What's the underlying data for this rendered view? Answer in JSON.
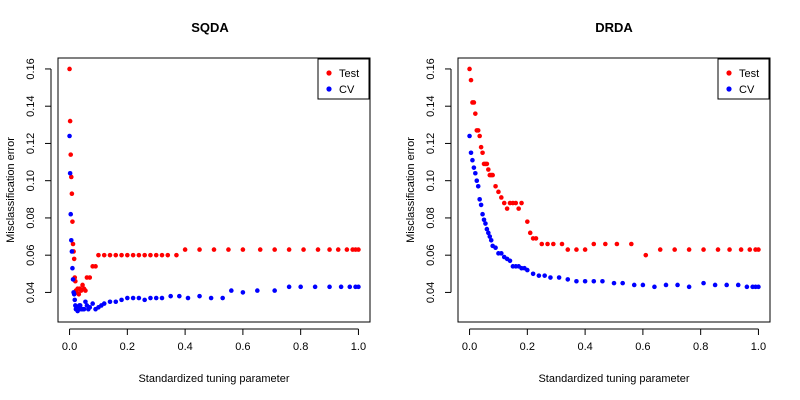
{
  "chart_data": [
    {
      "type": "scatter",
      "title": "SQDA",
      "xlabel": "Standardized tuning parameter",
      "ylabel": "Misclassification error",
      "xlim": [
        -0.04,
        1.04
      ],
      "ylim": [
        0.02412,
        0.16588
      ],
      "xticks": [
        0.0,
        0.2,
        0.4,
        0.6,
        0.8,
        1.0
      ],
      "xtick_labels": [
        "0.0",
        "0.2",
        "0.4",
        "0.6",
        "0.8",
        "1.0"
      ],
      "yticks": [
        0.04,
        0.06,
        0.08,
        0.1,
        0.12,
        0.14,
        0.16
      ],
      "ytick_labels": [
        "0.04",
        "0.06",
        "0.08",
        "0.10",
        "0.12",
        "0.14",
        "0.16"
      ],
      "legend": {
        "position": "top-right",
        "entries": [
          "Test",
          "CV"
        ]
      },
      "series": [
        {
          "name": "Test",
          "color": "#ff0000",
          "x": [
            0.0,
            0.002,
            0.004,
            0.006,
            0.008,
            0.01,
            0.012,
            0.014,
            0.016,
            0.018,
            0.02,
            0.022,
            0.025,
            0.028,
            0.032,
            0.036,
            0.04,
            0.045,
            0.05,
            0.055,
            0.06,
            0.07,
            0.08,
            0.09,
            0.1,
            0.12,
            0.14,
            0.16,
            0.18,
            0.2,
            0.22,
            0.24,
            0.26,
            0.28,
            0.3,
            0.32,
            0.34,
            0.37,
            0.4,
            0.45,
            0.5,
            0.55,
            0.6,
            0.66,
            0.71,
            0.76,
            0.81,
            0.86,
            0.9,
            0.93,
            0.96,
            0.98,
            0.99,
            1.0
          ],
          "y": [
            0.16,
            0.132,
            0.114,
            0.102,
            0.093,
            0.078,
            0.066,
            0.062,
            0.058,
            0.048,
            0.046,
            0.041,
            0.04,
            0.042,
            0.039,
            0.042,
            0.041,
            0.044,
            0.042,
            0.041,
            0.048,
            0.048,
            0.054,
            0.054,
            0.06,
            0.06,
            0.06,
            0.06,
            0.06,
            0.06,
            0.06,
            0.06,
            0.06,
            0.06,
            0.06,
            0.06,
            0.06,
            0.06,
            0.063,
            0.063,
            0.063,
            0.063,
            0.063,
            0.063,
            0.063,
            0.063,
            0.063,
            0.063,
            0.063,
            0.063,
            0.063,
            0.063,
            0.063,
            0.063
          ]
        },
        {
          "name": "CV",
          "color": "#0000ff",
          "x": [
            0.0,
            0.002,
            0.004,
            0.006,
            0.008,
            0.01,
            0.012,
            0.014,
            0.016,
            0.018,
            0.02,
            0.022,
            0.025,
            0.028,
            0.031,
            0.034,
            0.037,
            0.04,
            0.045,
            0.05,
            0.055,
            0.06,
            0.065,
            0.07,
            0.08,
            0.09,
            0.1,
            0.11,
            0.12,
            0.14,
            0.16,
            0.18,
            0.2,
            0.22,
            0.24,
            0.26,
            0.28,
            0.3,
            0.32,
            0.35,
            0.38,
            0.41,
            0.45,
            0.49,
            0.53,
            0.56,
            0.6,
            0.65,
            0.71,
            0.76,
            0.8,
            0.85,
            0.9,
            0.94,
            0.97,
            0.99,
            1.0
          ],
          "y": [
            0.124,
            0.104,
            0.082,
            0.068,
            0.062,
            0.053,
            0.047,
            0.04,
            0.039,
            0.036,
            0.033,
            0.031,
            0.032,
            0.03,
            0.031,
            0.033,
            0.033,
            0.031,
            0.031,
            0.031,
            0.035,
            0.033,
            0.031,
            0.032,
            0.034,
            0.031,
            0.032,
            0.033,
            0.034,
            0.035,
            0.035,
            0.036,
            0.037,
            0.037,
            0.037,
            0.036,
            0.037,
            0.037,
            0.037,
            0.038,
            0.038,
            0.037,
            0.038,
            0.037,
            0.037,
            0.041,
            0.04,
            0.041,
            0.041,
            0.043,
            0.043,
            0.043,
            0.043,
            0.043,
            0.043,
            0.043,
            0.043
          ]
        }
      ]
    },
    {
      "type": "scatter",
      "title": "DRDA",
      "xlabel": "Standardized tuning parameter",
      "ylabel": "Misclassification error",
      "xlim": [
        -0.04,
        1.04
      ],
      "ylim": [
        0.02412,
        0.16588
      ],
      "xticks": [
        0.0,
        0.2,
        0.4,
        0.6,
        0.8,
        1.0
      ],
      "xtick_labels": [
        "0.0",
        "0.2",
        "0.4",
        "0.6",
        "0.8",
        "1.0"
      ],
      "yticks": [
        0.04,
        0.06,
        0.08,
        0.1,
        0.12,
        0.14,
        0.16
      ],
      "ytick_labels": [
        "0.04",
        "0.06",
        "0.08",
        "0.10",
        "0.12",
        "0.14",
        "0.16"
      ],
      "legend": {
        "position": "top-right",
        "entries": [
          "Test",
          "CV"
        ]
      },
      "series": [
        {
          "name": "Test",
          "color": "#ff0000",
          "x": [
            0.0,
            0.005,
            0.01,
            0.015,
            0.02,
            0.025,
            0.03,
            0.035,
            0.04,
            0.045,
            0.05,
            0.055,
            0.06,
            0.065,
            0.07,
            0.075,
            0.08,
            0.09,
            0.1,
            0.11,
            0.12,
            0.13,
            0.14,
            0.15,
            0.16,
            0.17,
            0.18,
            0.2,
            0.21,
            0.22,
            0.23,
            0.25,
            0.27,
            0.29,
            0.32,
            0.34,
            0.37,
            0.4,
            0.43,
            0.47,
            0.51,
            0.56,
            0.61,
            0.66,
            0.71,
            0.76,
            0.81,
            0.86,
            0.9,
            0.94,
            0.97,
            0.99,
            1.0
          ],
          "y": [
            0.16,
            0.154,
            0.142,
            0.142,
            0.136,
            0.127,
            0.127,
            0.124,
            0.118,
            0.115,
            0.109,
            0.109,
            0.109,
            0.106,
            0.103,
            0.103,
            0.103,
            0.097,
            0.094,
            0.091,
            0.088,
            0.085,
            0.088,
            0.088,
            0.088,
            0.085,
            0.088,
            0.078,
            0.072,
            0.069,
            0.069,
            0.066,
            0.066,
            0.066,
            0.066,
            0.063,
            0.063,
            0.063,
            0.066,
            0.066,
            0.066,
            0.066,
            0.06,
            0.063,
            0.063,
            0.063,
            0.063,
            0.063,
            0.063,
            0.063,
            0.063,
            0.063,
            0.063
          ]
        },
        {
          "name": "CV",
          "color": "#0000ff",
          "x": [
            0.0,
            0.005,
            0.01,
            0.015,
            0.02,
            0.025,
            0.03,
            0.035,
            0.04,
            0.045,
            0.05,
            0.055,
            0.06,
            0.065,
            0.07,
            0.075,
            0.08,
            0.09,
            0.1,
            0.11,
            0.12,
            0.13,
            0.14,
            0.15,
            0.16,
            0.17,
            0.18,
            0.19,
            0.2,
            0.22,
            0.24,
            0.26,
            0.28,
            0.31,
            0.34,
            0.37,
            0.4,
            0.43,
            0.46,
            0.5,
            0.53,
            0.57,
            0.6,
            0.64,
            0.68,
            0.72,
            0.76,
            0.81,
            0.85,
            0.89,
            0.93,
            0.96,
            0.98,
            0.99,
            1.0
          ],
          "y": [
            0.124,
            0.115,
            0.111,
            0.107,
            0.104,
            0.1,
            0.097,
            0.09,
            0.087,
            0.082,
            0.079,
            0.077,
            0.074,
            0.072,
            0.07,
            0.068,
            0.065,
            0.064,
            0.061,
            0.061,
            0.059,
            0.058,
            0.057,
            0.054,
            0.054,
            0.054,
            0.053,
            0.053,
            0.052,
            0.05,
            0.049,
            0.049,
            0.048,
            0.048,
            0.047,
            0.046,
            0.046,
            0.046,
            0.046,
            0.045,
            0.045,
            0.044,
            0.044,
            0.043,
            0.044,
            0.044,
            0.043,
            0.045,
            0.044,
            0.044,
            0.044,
            0.043,
            0.043,
            0.043,
            0.043
          ]
        }
      ]
    }
  ]
}
